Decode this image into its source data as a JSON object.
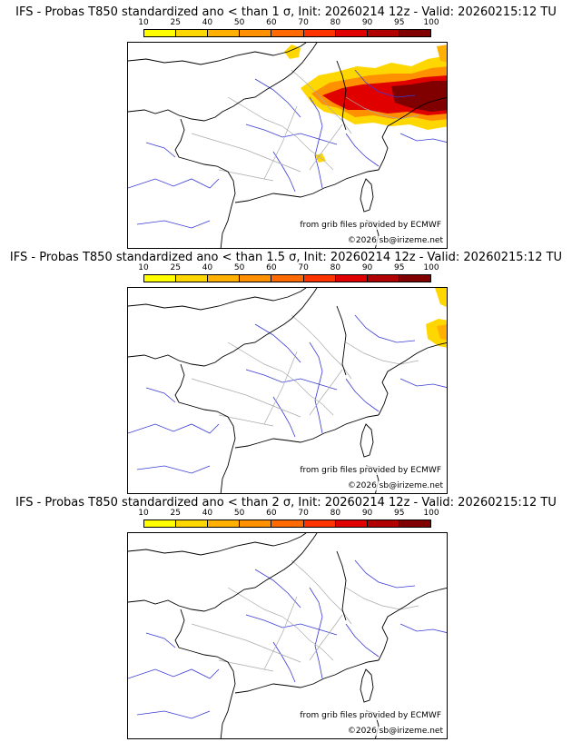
{
  "legend": {
    "ticks": [
      "10",
      "25",
      "40",
      "50",
      "60",
      "70",
      "80",
      "90",
      "95",
      "100"
    ],
    "colors": [
      "#ffff00",
      "#ffd700",
      "#ffb000",
      "#ff9000",
      "#ff6a00",
      "#ff3300",
      "#e00000",
      "#b00000",
      "#800000"
    ]
  },
  "panels": [
    {
      "title": "IFS - Probas T850  standardized ano < than 1 σ, Init: 20260214 12z - Valid: 20260215:12 TU",
      "credit_grib": "from grib files provided by ECMWF",
      "credit_copy": "©2026 sb@irizeme.net",
      "anomaly_shown": "strong"
    },
    {
      "title": "IFS - Probas T850  standardized ano < than 1.5 σ, Init: 20260214 12z - Valid: 20260215:12 TU",
      "credit_grib": "from grib files provided by ECMWF",
      "credit_copy": "©2026 sb@irizeme.net",
      "anomaly_shown": "weak"
    },
    {
      "title": "IFS - Probas T850  standardized ano < than 2 σ, Init: 20260214 12z - Valid: 20260215:12 TU",
      "credit_grib": "from grib files provided by ECMWF",
      "credit_copy": "©2026 sb@irizeme.net",
      "anomaly_shown": "none"
    }
  ]
}
